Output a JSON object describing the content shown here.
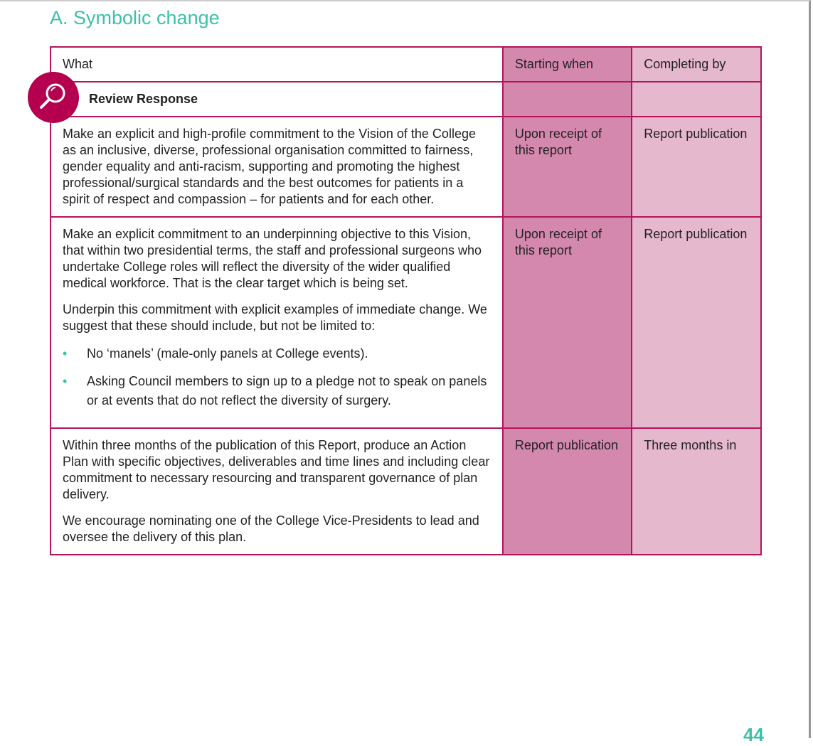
{
  "title": "A. Symbolic change",
  "table": {
    "headers": [
      "What",
      "Starting when",
      "Completing by"
    ],
    "section": "Review Response",
    "rows": [
      {
        "what": [
          "Make an explicit and high-profile commitment to the Vision of the College as an inclusive, diverse, professional organisation committed to fairness, gender equality and anti-racism, supporting and promoting the highest professional/surgical standards and the best outcomes for patients in a spirit of respect and compassion – for patients and for each other."
        ],
        "bullets": [],
        "start": "Upon receipt of this report",
        "complete": "Report publication"
      },
      {
        "what": [
          "Make an explicit commitment to an underpinning objective to this Vision, that within two presidential terms, the staff and professional surgeons who undertake College roles will reflect the diversity of the wider qualified medical workforce. That is the clear target which is being set.",
          "Underpin this commitment with explicit examples of immediate change. We suggest that these should include, but not be limited to:"
        ],
        "bullets": [
          "No ‘manels’ (male-only panels at College events).",
          "Asking Council members to sign up to a pledge not to speak on panels or at events that do not reflect the diversity of surgery."
        ],
        "start": "Upon receipt of this report",
        "complete": "Report publication"
      },
      {
        "what": [
          "Within three months of the publication of this Report, produce an Action Plan with specific objectives, deliverables and time lines and including clear commitment to necessary resourcing and transparent governance of plan delivery.",
          "We encourage nominating one of the College Vice-Presidents to lead and oversee the delivery of this plan."
        ],
        "bullets": [],
        "start": "Report publication",
        "complete": "Three months in"
      }
    ]
  },
  "icon": "magnifier-icon",
  "page_number": "44",
  "colors": {
    "accent": "#3cc0a8",
    "border": "#b5145a",
    "col_start": "#d488ad",
    "col_complete": "#e6b8cd",
    "icon_bg": "#b5004f"
  }
}
